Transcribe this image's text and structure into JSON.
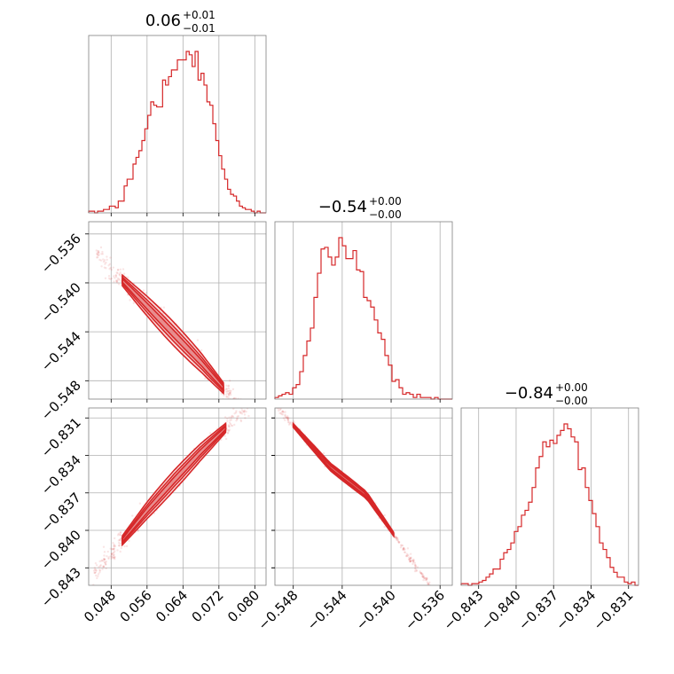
{
  "chart_data": {
    "type": "corner",
    "color": "#d62728",
    "params": [
      {
        "title": {
          "value": "0.06",
          "plus": "+0.01",
          "minus": "−0.01"
        },
        "range": [
          0.043,
          0.0825
        ],
        "ticks": [
          "0.048",
          "0.056",
          "0.064",
          "0.072",
          "0.080"
        ],
        "tick_values": [
          0.048,
          0.056,
          0.064,
          0.072,
          0.08
        ],
        "hist": [
          1,
          1,
          0,
          1,
          1,
          2,
          2,
          4,
          4,
          3,
          7,
          7,
          16,
          20,
          20,
          29,
          33,
          37,
          43,
          50,
          58,
          66,
          64,
          63,
          63,
          79,
          76,
          81,
          85,
          85,
          91,
          91,
          91,
          96,
          94,
          87,
          96,
          79,
          83,
          76,
          66,
          64,
          53,
          43,
          34,
          26,
          20,
          14,
          11,
          10,
          7,
          4,
          3,
          2,
          2,
          1,
          0,
          1,
          0,
          0
        ]
      },
      {
        "title": {
          "value": "−0.54",
          "plus": "+0.00",
          "minus": "−0.00"
        },
        "range": [
          -0.5495,
          -0.535
        ],
        "ticks": [
          "−0.548",
          "−0.544",
          "−0.540",
          "−0.536"
        ],
        "tick_values": [
          -0.548,
          -0.544,
          -0.54,
          -0.536
        ],
        "hist": [
          1,
          2,
          3,
          4,
          3,
          7,
          9,
          17,
          27,
          36,
          44,
          63,
          78,
          93,
          94,
          88,
          83,
          88,
          100,
          95,
          87,
          87,
          92,
          80,
          79,
          63,
          61,
          57,
          49,
          41,
          37,
          27,
          21,
          11,
          12,
          7,
          3,
          4,
          3,
          1,
          3,
          1,
          1,
          1,
          0,
          1,
          0,
          0,
          0,
          0
        ]
      },
      {
        "title": {
          "value": "−0.84",
          "plus": "+0.00",
          "minus": "−0.00"
        },
        "range": [
          -0.8444,
          -0.8302
        ],
        "ticks": [
          "−0.843",
          "−0.840",
          "−0.837",
          "−0.834",
          "−0.831"
        ],
        "tick_values": [
          -0.843,
          -0.84,
          -0.837,
          -0.834,
          -0.831
        ],
        "hist": [
          1,
          1,
          0,
          1,
          1,
          2,
          3,
          5,
          7,
          10,
          10,
          16,
          20,
          22,
          26,
          33,
          36,
          43,
          46,
          51,
          60,
          72,
          79,
          88,
          85,
          89,
          87,
          92,
          95,
          99,
          96,
          91,
          88,
          71,
          72,
          60,
          52,
          44,
          36,
          26,
          22,
          17,
          11,
          8,
          5,
          5,
          2,
          1,
          2,
          0
        ]
      }
    ],
    "pairs": [
      {
        "x_param": 0,
        "y_param": 1,
        "trend": [
          [
            0.0505,
            -0.5398
          ],
          [
            0.056,
            -0.5419
          ],
          [
            0.062,
            -0.5442
          ],
          [
            0.068,
            -0.5465
          ],
          [
            0.073,
            -0.5486
          ]
        ],
        "spread": 0.0006,
        "x_extent": [
          0.0445,
          0.081
        ]
      },
      {
        "x_param": 0,
        "y_param": 2,
        "trend": [
          [
            0.0505,
            -0.8408
          ],
          [
            0.056,
            -0.8384
          ],
          [
            0.062,
            -0.836
          ],
          [
            0.068,
            -0.8337
          ],
          [
            0.0735,
            -0.8318
          ]
        ],
        "spread": 0.0005,
        "x_extent": [
          0.044,
          0.0805
        ]
      },
      {
        "x_param": 1,
        "y_param": 2,
        "trend": [
          [
            -0.548,
            -0.8316
          ],
          [
            -0.545,
            -0.8349
          ],
          [
            -0.542,
            -0.8372
          ],
          [
            -0.5398,
            -0.8403
          ]
        ],
        "spread": 0.0002,
        "x_extent": [
          -0.5495,
          -0.5365
        ]
      }
    ]
  }
}
